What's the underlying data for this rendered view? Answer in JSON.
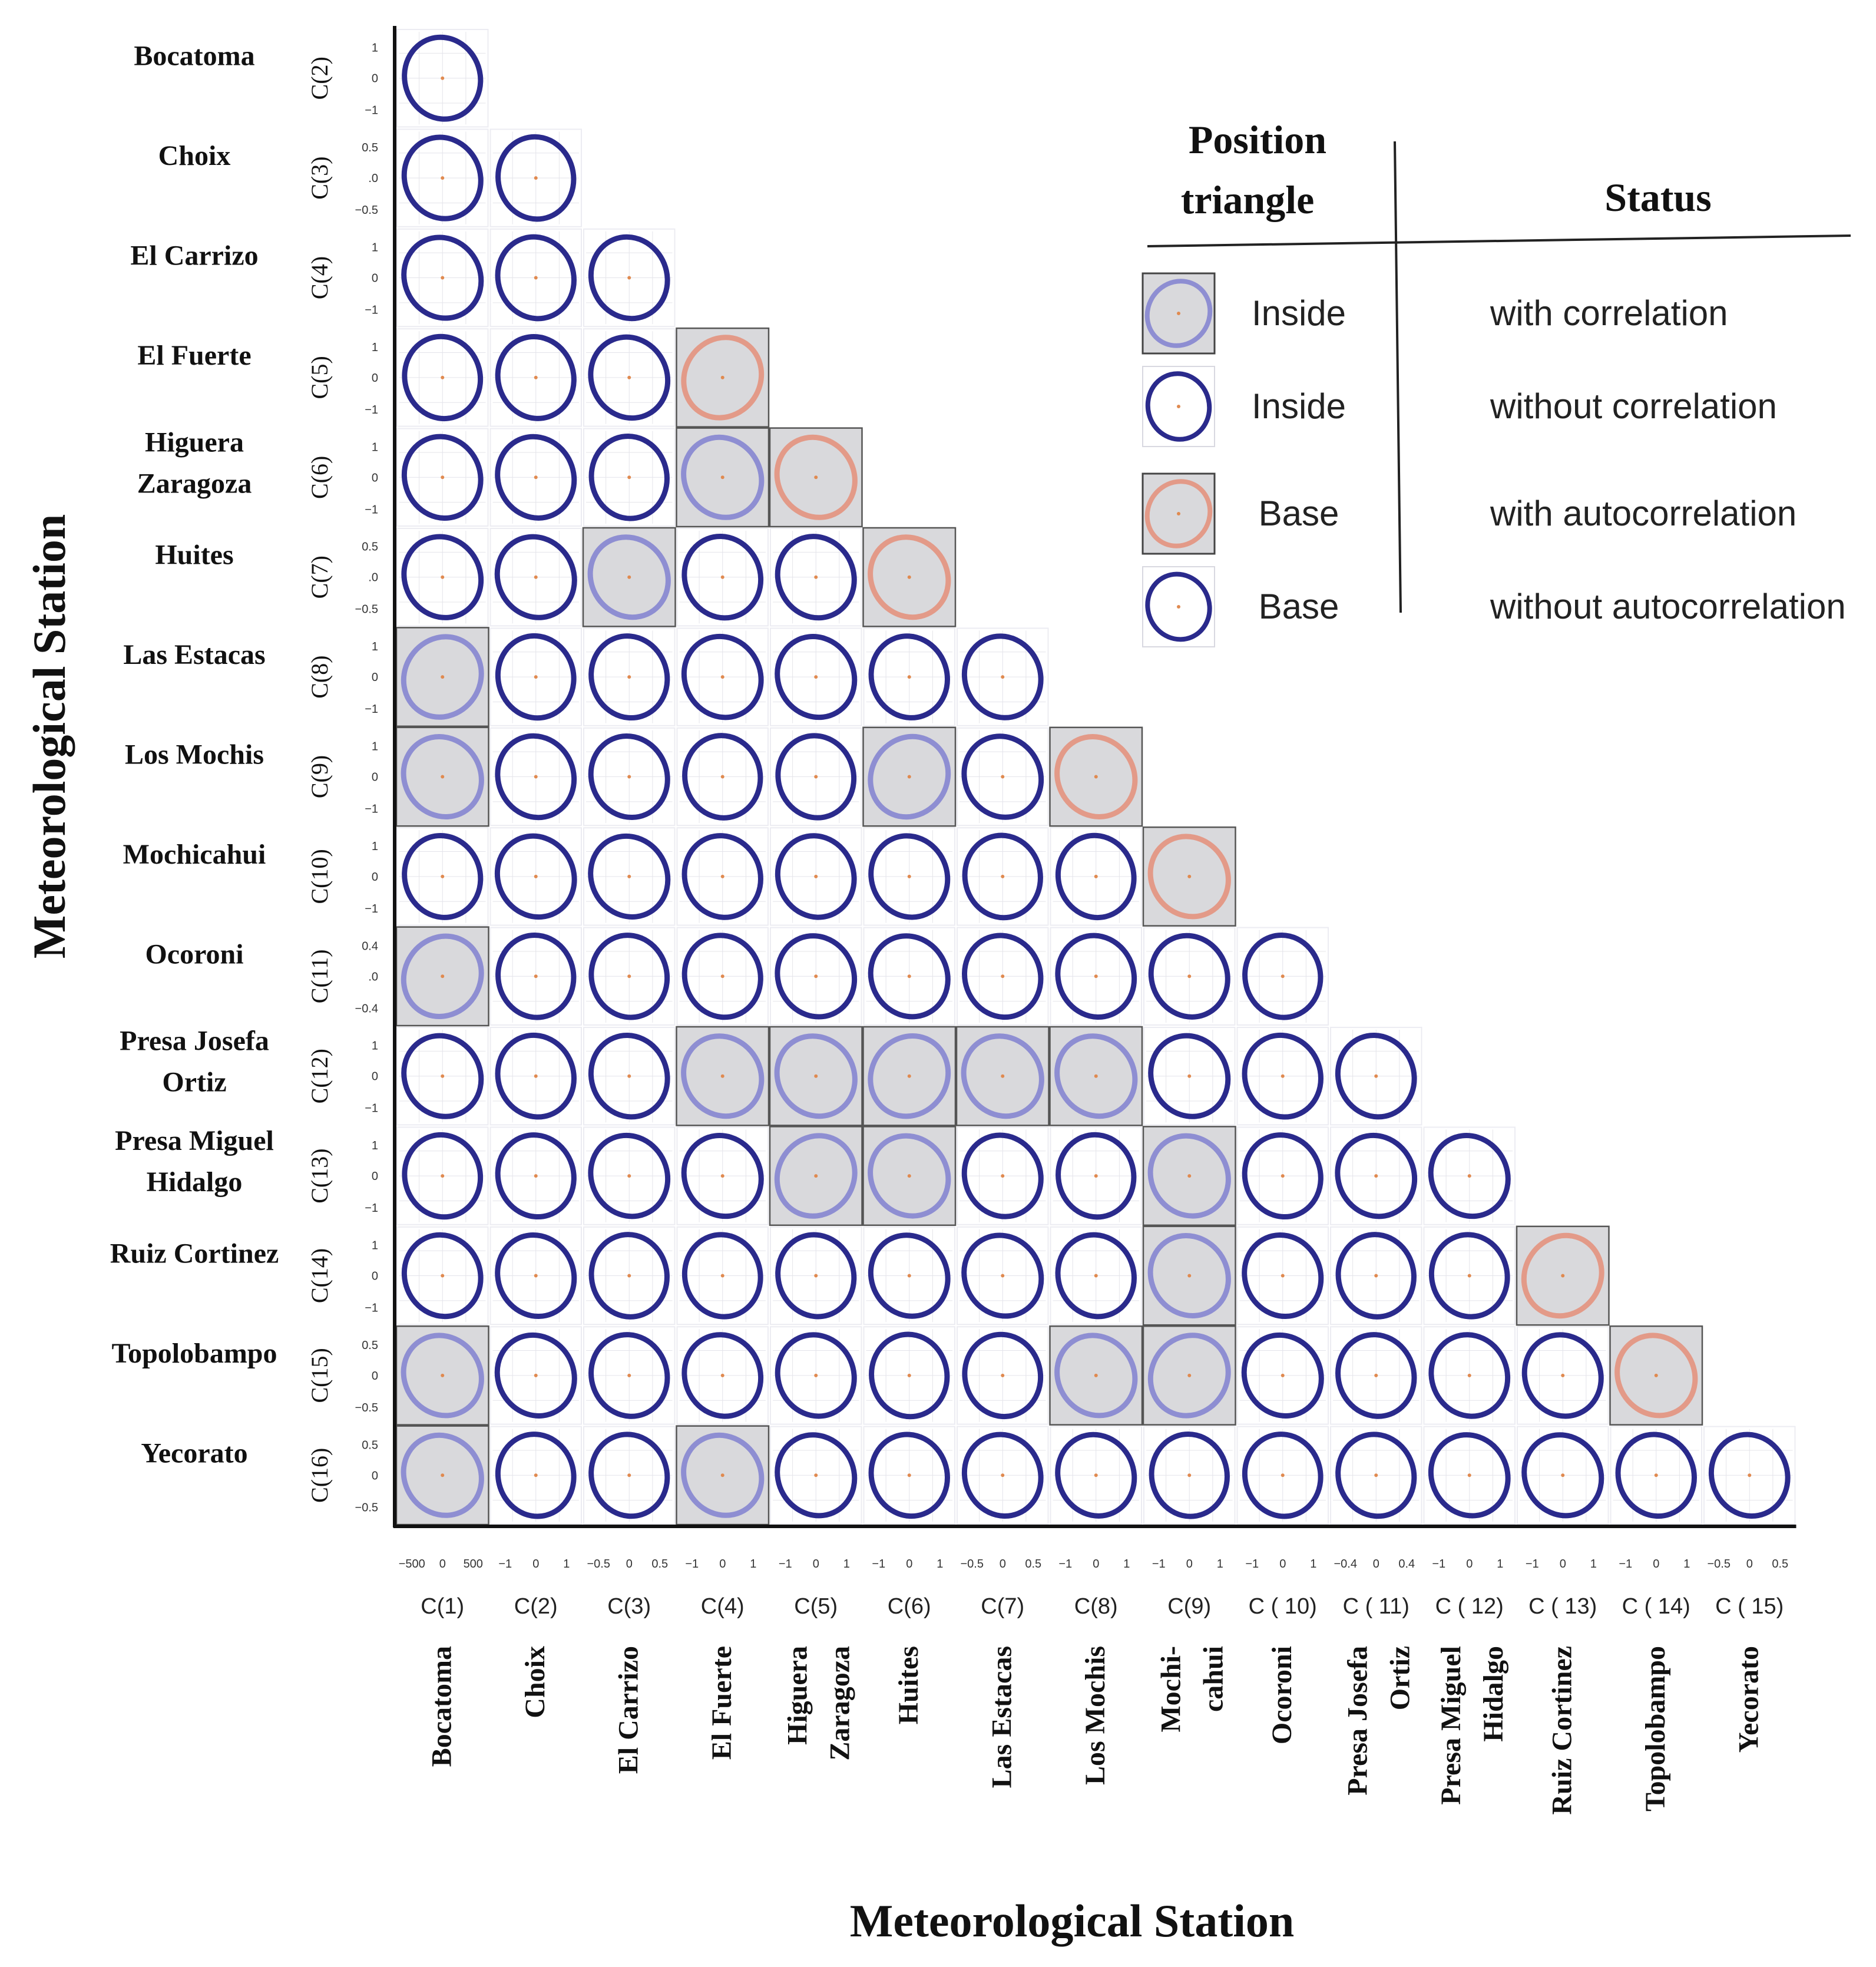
{
  "chart_data": {
    "type": "ellipse-correlation-matrix",
    "y_axis_title": "Meteorological Station",
    "x_axis_title": "Meteorological Station",
    "row_stations": [
      [
        "Bocatoma"
      ],
      [
        "Choix"
      ],
      [
        "El Carrizo"
      ],
      [
        "El Fuerte"
      ],
      [
        "Higuera",
        "Zaragoza"
      ],
      [
        "Huites"
      ],
      [
        "Las Estacas"
      ],
      [
        "Los Mochis"
      ],
      [
        "Mochicahui"
      ],
      [
        "Ocoroni"
      ],
      [
        "Presa Josefa",
        "Ortiz"
      ],
      [
        "Presa Miguel",
        "Hidalgo"
      ],
      [
        "Ruiz  Cortinez"
      ],
      [
        "Topolobampo"
      ],
      [
        "Yecorato"
      ]
    ],
    "row_codes": [
      "C(2)",
      "C(3)",
      "C(4)",
      "C(5)",
      "C(6)",
      "C(7)",
      "C(8)",
      "C(9)",
      "C(10)",
      "C(11)",
      "C(12)",
      "C(13)",
      "C(14)",
      "C(15)",
      "C(16)"
    ],
    "row_ticks": [
      [
        "1",
        "0",
        "−1"
      ],
      [
        "0.5",
        ".0",
        "−0.5"
      ],
      [
        "1",
        "0",
        "−1"
      ],
      [
        "1",
        "0",
        "−1"
      ],
      [
        "1",
        "0",
        "−1"
      ],
      [
        "0.5",
        ".0",
        "−0.5"
      ],
      [
        "1",
        "0",
        "−1"
      ],
      [
        "1",
        "0",
        "−1"
      ],
      [
        "1",
        "0",
        "−1"
      ],
      [
        "0.4",
        ".0",
        "−0.4"
      ],
      [
        "1",
        "0",
        "−1"
      ],
      [
        "1",
        "0",
        "−1"
      ],
      [
        "1",
        "0",
        "−1"
      ],
      [
        "0.5",
        "0",
        "−0.5"
      ],
      [
        "0.5",
        "0",
        "−0.5"
      ]
    ],
    "col_codes": [
      "C(1)",
      "C(2)",
      "C(3)",
      "C(4)",
      "C(5)",
      "C(6)",
      "C(7)",
      "C(8)",
      "C(9)",
      "C ( 10)",
      "C ( 11)",
      "C ( 12)",
      "C ( 13)",
      "C ( 14)",
      "C ( 15)"
    ],
    "col_stations": [
      [
        "Bocatoma"
      ],
      [
        "Choix"
      ],
      [
        "El Carrizo"
      ],
      [
        "El Fuerte"
      ],
      [
        "Higuera",
        "Zaragoza"
      ],
      [
        "Huites"
      ],
      [
        "Las Estacas"
      ],
      [
        "Los Mochis"
      ],
      [
        "Mochi-",
        "cahui"
      ],
      [
        "Ocoroni"
      ],
      [
        "Presa Josefa",
        "Ortiz"
      ],
      [
        "Presa Miguel",
        "Hidalgo"
      ],
      [
        "Ruiz  Cortinez"
      ],
      [
        "Topolobampo"
      ],
      [
        "Yecorato"
      ]
    ],
    "col_ticks": [
      [
        "−500",
        "0",
        "500"
      ],
      [
        "−1",
        "0",
        "1"
      ],
      [
        "−0.5",
        "0",
        "0.5"
      ],
      [
        "−1",
        "0",
        "1"
      ],
      [
        "−1",
        "0",
        "1"
      ],
      [
        "−1",
        "0",
        "1"
      ],
      [
        "−0.5",
        "0",
        "0.5"
      ],
      [
        "−1",
        "0",
        "1"
      ],
      [
        "−1",
        "0",
        "1"
      ],
      [
        "−1",
        "0",
        "1"
      ],
      [
        "−0.4",
        "0",
        "0.4"
      ],
      [
        "−1",
        "0",
        "1"
      ],
      [
        "−1",
        "0",
        "1"
      ],
      [
        "−1",
        "0",
        "1"
      ],
      [
        "−0.5",
        "0",
        "0.5"
      ]
    ],
    "cell_status_key": {
      "I": "inside without correlation",
      "C": "inside with correlation",
      "A": "base with autocorrelation",
      "B": "base without autocorrelation"
    },
    "cells": [
      [
        "B"
      ],
      [
        "I",
        "B"
      ],
      [
        "I",
        "I",
        "B"
      ],
      [
        "I",
        "I",
        "I",
        "A"
      ],
      [
        "I",
        "I",
        "I",
        "C",
        "A"
      ],
      [
        "I",
        "I",
        "C",
        "I",
        "I",
        "A"
      ],
      [
        "C",
        "I",
        "I",
        "I",
        "I",
        "I",
        "B"
      ],
      [
        "C",
        "I",
        "I",
        "I",
        "I",
        "C",
        "I",
        "A"
      ],
      [
        "I",
        "I",
        "I",
        "I",
        "I",
        "I",
        "I",
        "I",
        "A"
      ],
      [
        "C",
        "I",
        "I",
        "I",
        "I",
        "I",
        "I",
        "I",
        "I",
        "B"
      ],
      [
        "I",
        "I",
        "I",
        "C",
        "C",
        "C",
        "C",
        "C",
        "I",
        "I",
        "B"
      ],
      [
        "I",
        "I",
        "I",
        "I",
        "C",
        "C",
        "I",
        "I",
        "C",
        "I",
        "I",
        "B"
      ],
      [
        "I",
        "I",
        "I",
        "I",
        "I",
        "I",
        "I",
        "I",
        "C",
        "I",
        "I",
        "I",
        "A"
      ],
      [
        "C",
        "I",
        "I",
        "I",
        "I",
        "I",
        "I",
        "C",
        "C",
        "I",
        "I",
        "I",
        "I",
        "A"
      ],
      [
        "C",
        "I",
        "I",
        "C",
        "I",
        "I",
        "I",
        "I",
        "I",
        "I",
        "I",
        "I",
        "I",
        "I",
        "B"
      ]
    ],
    "legend": {
      "header_position": [
        "Position",
        "triangle"
      ],
      "header_status": "Status",
      "rows": [
        {
          "symbol": "C",
          "position": "Inside",
          "status": "with correlation"
        },
        {
          "symbol": "I",
          "position": "Inside",
          "status": "without correlation"
        },
        {
          "symbol": "A",
          "position": "Base",
          "status": "with autocorrelation"
        },
        {
          "symbol": "B",
          "position": "Base",
          "status": "without autocorrelation"
        }
      ]
    },
    "colors": {
      "ellipse_dark": "#2a2a8c",
      "ellipse_light": "#8e8ed2",
      "ellipse_auto": "#e39a88",
      "shade": "#d9d9dc",
      "center_dot": "#e08a50",
      "grid": "#e4e4ea"
    }
  }
}
